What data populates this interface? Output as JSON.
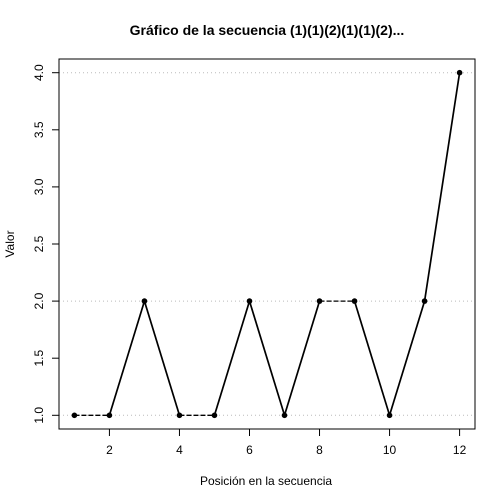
{
  "chart_data": {
    "type": "line",
    "title": "Gráfico de la secuencia (1)(1)(2)(1)(1)(2)...",
    "xlabel": "Posición en la secuencia",
    "ylabel": "Valor",
    "x": [
      1,
      2,
      3,
      4,
      5,
      6,
      7,
      8,
      9,
      10,
      11,
      12
    ],
    "y": [
      1,
      1,
      2,
      1,
      1,
      2,
      1,
      2,
      2,
      1,
      2,
      4
    ],
    "xlim": [
      0.56,
      12.44
    ],
    "ylim": [
      0.88,
      4.12
    ],
    "x_ticks": [
      2,
      4,
      6,
      8,
      10,
      12
    ],
    "x_tick_labels": [
      "2",
      "4",
      "6",
      "8",
      "10",
      "12"
    ],
    "y_ticks": [
      1.0,
      1.5,
      2.0,
      2.5,
      3.0,
      3.5,
      4.0
    ],
    "y_tick_labels": [
      "1.0",
      "1.5",
      "2.0",
      "2.5",
      "3.0",
      "3.5",
      "4.0"
    ],
    "horizontal_reference_lines": [
      1,
      2,
      4
    ],
    "segment_styles": [
      "dashed",
      "solid",
      "solid",
      "dashed",
      "solid",
      "solid",
      "solid",
      "dashed",
      "solid",
      "solid",
      "solid"
    ],
    "line_color": "#000000",
    "reference_line_color": "#bbbbbb",
    "marker": "filled-circle"
  }
}
